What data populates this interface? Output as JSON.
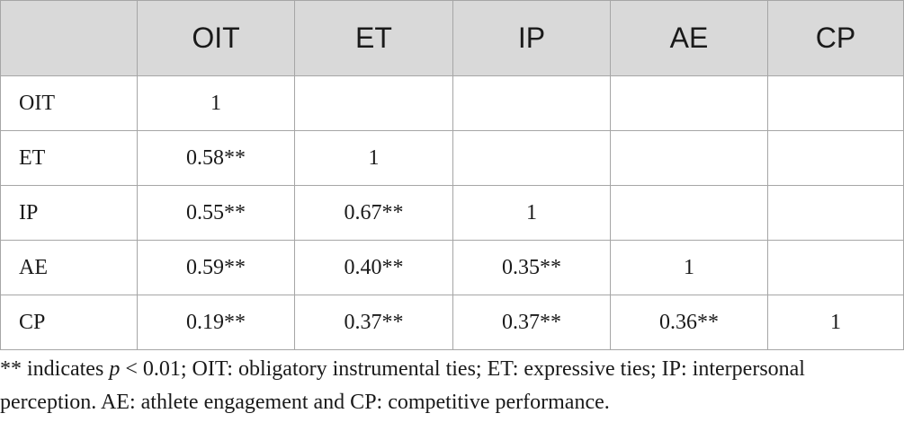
{
  "table": {
    "header": [
      "",
      "OIT",
      "ET",
      "IP",
      "AE",
      "CP"
    ],
    "rows": [
      {
        "label": "OIT",
        "cells": [
          "1",
          "",
          "",
          "",
          ""
        ]
      },
      {
        "label": "ET",
        "cells": [
          "0.58**",
          "1",
          "",
          "",
          ""
        ]
      },
      {
        "label": "IP",
        "cells": [
          "0.55**",
          "0.67**",
          "1",
          "",
          ""
        ]
      },
      {
        "label": "AE",
        "cells": [
          "0.59**",
          "0.40**",
          "0.35**",
          "1",
          ""
        ]
      },
      {
        "label": "CP",
        "cells": [
          "0.19**",
          "0.37**",
          "0.37**",
          "0.36**",
          "1"
        ]
      }
    ]
  },
  "footnote": {
    "part1": "** indicates ",
    "p_symbol": "p",
    "part2": " < 0.01; OIT: obligatory instrumental ties; ET: expressive ties; IP: interpersonal perception. AE: athlete engagement and CP: competitive performance."
  },
  "colors": {
    "header_bg": "#d9d9d9",
    "border": "#a6a6a6",
    "text": "#1a1a1a"
  }
}
